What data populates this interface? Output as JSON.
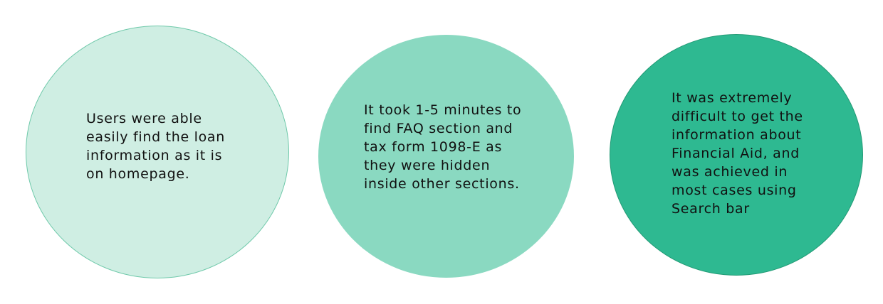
{
  "colors": {
    "circle_1_fill": "#cfeee3",
    "circle_2_fill": "#8ad9c1",
    "circle_3_fill": "#2eb991",
    "text": "#111111"
  },
  "findings": [
    {
      "text": "Users were able\neasily find the loan\ninformation as it is\non homepage."
    },
    {
      "text": "It took 1-5 minutes to\nfind FAQ section and\ntax form 1098-E as\nthey were hidden\ninside other sections."
    },
    {
      "text": "It was extremely\ndifficult to get the\ninformation about\nFinancial Aid, and\nwas achieved in\nmost cases using\nSearch bar"
    }
  ]
}
